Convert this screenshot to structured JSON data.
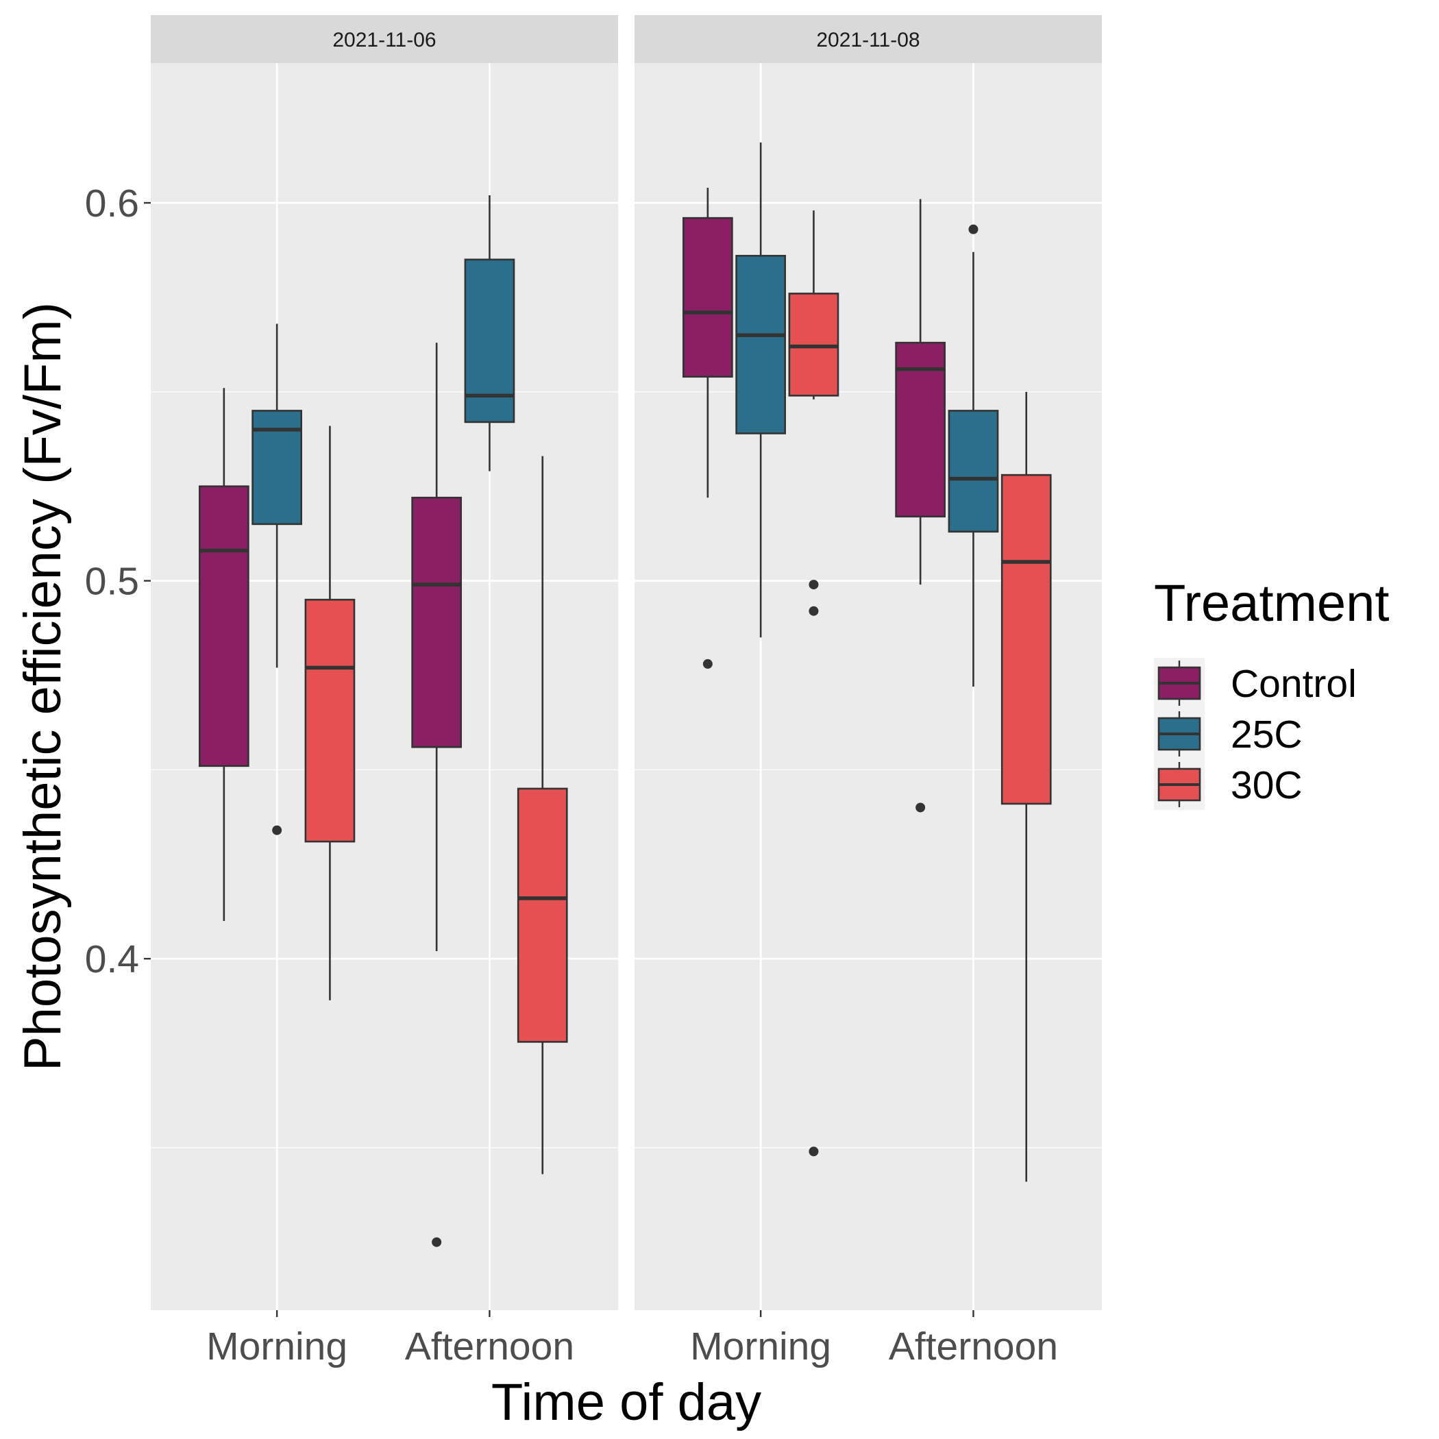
{
  "chart_data": {
    "type": "boxplot",
    "xlabel": "Time of day",
    "ylabel": "Photosynthetic efficiency (Fv/Fm)",
    "ylim": [
      0.307,
      0.637
    ],
    "yticks": [
      0.4,
      0.5,
      0.6
    ],
    "ytick_labels": [
      "0.4",
      "0.5",
      "0.6"
    ],
    "categories": [
      "Morning",
      "Afternoon"
    ],
    "grid": true,
    "legend": {
      "title": "Treatment",
      "position": "right",
      "entries": [
        {
          "name": "Control",
          "color": "#8a1f66"
        },
        {
          "name": "25C",
          "color": "#2b6f8c"
        },
        {
          "name": "30C",
          "color": "#e55153"
        }
      ]
    },
    "panels": [
      {
        "label": "2021-11-06",
        "groups": [
          {
            "category": "Morning",
            "series": "Control",
            "whisker_low": 0.41,
            "q1": 0.451,
            "median": 0.508,
            "q3": 0.525,
            "whisker_high": 0.551,
            "outliers": []
          },
          {
            "category": "Morning",
            "series": "25C",
            "whisker_low": 0.477,
            "q1": 0.515,
            "median": 0.54,
            "q3": 0.545,
            "whisker_high": 0.568,
            "outliers": [
              0.434
            ]
          },
          {
            "category": "Morning",
            "series": "30C",
            "whisker_low": 0.389,
            "q1": 0.431,
            "median": 0.477,
            "q3": 0.495,
            "whisker_high": 0.541,
            "outliers": []
          },
          {
            "category": "Afternoon",
            "series": "Control",
            "whisker_low": 0.402,
            "q1": 0.456,
            "median": 0.499,
            "q3": 0.522,
            "whisker_high": 0.563,
            "outliers": [
              0.325
            ]
          },
          {
            "category": "Afternoon",
            "series": "25C",
            "whisker_low": 0.529,
            "q1": 0.542,
            "median": 0.549,
            "q3": 0.585,
            "whisker_high": 0.602,
            "outliers": []
          },
          {
            "category": "Afternoon",
            "series": "30C",
            "whisker_low": 0.343,
            "q1": 0.378,
            "median": 0.416,
            "q3": 0.445,
            "whisker_high": 0.533,
            "outliers": []
          }
        ]
      },
      {
        "label": "2021-11-08",
        "groups": [
          {
            "category": "Morning",
            "series": "Control",
            "whisker_low": 0.522,
            "q1": 0.554,
            "median": 0.571,
            "q3": 0.596,
            "whisker_high": 0.604,
            "outliers": [
              0.478
            ]
          },
          {
            "category": "Morning",
            "series": "25C",
            "whisker_low": 0.485,
            "q1": 0.539,
            "median": 0.565,
            "q3": 0.586,
            "whisker_high": 0.616,
            "outliers": []
          },
          {
            "category": "Morning",
            "series": "30C",
            "whisker_low": 0.548,
            "q1": 0.549,
            "median": 0.562,
            "q3": 0.576,
            "whisker_high": 0.598,
            "outliers": [
              0.499,
              0.492,
              0.349
            ]
          },
          {
            "category": "Afternoon",
            "series": "Control",
            "whisker_low": 0.499,
            "q1": 0.517,
            "median": 0.556,
            "q3": 0.563,
            "whisker_high": 0.601,
            "outliers": [
              0.44
            ]
          },
          {
            "category": "Afternoon",
            "series": "25C",
            "whisker_low": 0.472,
            "q1": 0.513,
            "median": 0.527,
            "q3": 0.545,
            "whisker_high": 0.587,
            "outliers": [
              0.593
            ]
          },
          {
            "category": "Afternoon",
            "series": "30C",
            "whisker_low": 0.341,
            "q1": 0.441,
            "median": 0.505,
            "q3": 0.528,
            "whisker_high": 0.55,
            "outliers": []
          }
        ]
      }
    ]
  }
}
